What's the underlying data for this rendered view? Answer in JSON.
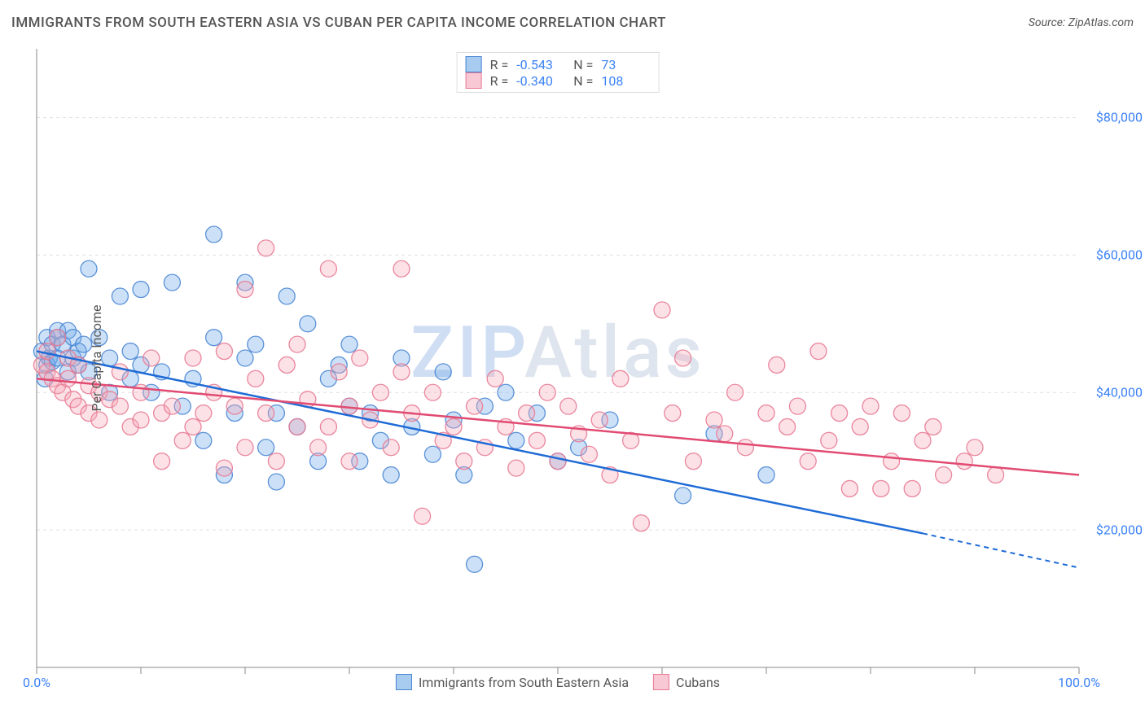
{
  "title": "IMMIGRANTS FROM SOUTH EASTERN ASIA VS CUBAN PER CAPITA INCOME CORRELATION CHART",
  "source": "Source: ZipAtlas.com",
  "watermark": {
    "part1": "ZIP",
    "part2": "Atlas"
  },
  "chart": {
    "type": "scatter",
    "ylabel": "Per Capita Income",
    "xlim": [
      0,
      100
    ],
    "ylim": [
      0,
      90000
    ],
    "y_ticks": [
      {
        "value": 20000,
        "label": "$20,000"
      },
      {
        "value": 40000,
        "label": "$40,000"
      },
      {
        "value": 60000,
        "label": "$60,000"
      },
      {
        "value": 80000,
        "label": "$80,000"
      }
    ],
    "y_gridlines": [
      20000,
      40000,
      60000,
      80000
    ],
    "x_tick_minor": [
      0,
      10,
      20,
      30,
      40,
      50,
      60,
      70,
      80,
      90,
      100
    ],
    "x_ticks": [
      {
        "value": 0,
        "label": "0.0%"
      },
      {
        "value": 100,
        "label": "100.0%"
      }
    ],
    "grid_color": "#e0e0e0",
    "grid_dash": "4 4",
    "axis_color": "#888",
    "background_color": "#ffffff",
    "tick_label_color": "#3b82f6",
    "axis_label_color": "#555555",
    "marker": {
      "radius": 10,
      "fill_opacity": 0.35,
      "stroke_width": 1.3,
      "stroke_opacity": 0.9
    },
    "series": [
      {
        "name": "Immigrants from South Eastern Asia",
        "color": "#6ea8e8",
        "stroke": "#4a86d4",
        "line_color": "#1e6bd6",
        "R": "-0.543",
        "N": "73",
        "regression": {
          "x1": 0,
          "y1": 46000,
          "x2": 85,
          "y2": 19500
        },
        "regression_extrapolate": {
          "x1": 85,
          "y1": 19500,
          "x2": 100,
          "y2": 14500
        },
        "points": [
          [
            0.5,
            46000
          ],
          [
            0.8,
            42000
          ],
          [
            1,
            48000
          ],
          [
            1,
            44000
          ],
          [
            1.2,
            45000
          ],
          [
            1.5,
            47000
          ],
          [
            1.5,
            44500
          ],
          [
            2,
            49000
          ],
          [
            2,
            45000
          ],
          [
            2,
            48000
          ],
          [
            2.5,
            47000
          ],
          [
            3,
            43000
          ],
          [
            3,
            49000
          ],
          [
            3.5,
            48000
          ],
          [
            3.5,
            45000
          ],
          [
            4,
            46000
          ],
          [
            4,
            44000
          ],
          [
            4.5,
            47000
          ],
          [
            5,
            58000
          ],
          [
            5,
            43000
          ],
          [
            6,
            48000
          ],
          [
            7,
            45000
          ],
          [
            7,
            40000
          ],
          [
            8,
            54000
          ],
          [
            9,
            42000
          ],
          [
            9,
            46000
          ],
          [
            10,
            55000
          ],
          [
            10,
            44000
          ],
          [
            11,
            40000
          ],
          [
            12,
            43000
          ],
          [
            13,
            56000
          ],
          [
            14,
            38000
          ],
          [
            15,
            42000
          ],
          [
            16,
            33000
          ],
          [
            17,
            63000
          ],
          [
            17,
            48000
          ],
          [
            18,
            28000
          ],
          [
            19,
            37000
          ],
          [
            20,
            56000
          ],
          [
            20,
            45000
          ],
          [
            21,
            47000
          ],
          [
            22,
            32000
          ],
          [
            23,
            37000
          ],
          [
            23,
            27000
          ],
          [
            24,
            54000
          ],
          [
            25,
            35000
          ],
          [
            26,
            50000
          ],
          [
            27,
            30000
          ],
          [
            28,
            42000
          ],
          [
            29,
            44000
          ],
          [
            30,
            38000
          ],
          [
            30,
            47000
          ],
          [
            31,
            30000
          ],
          [
            32,
            37000
          ],
          [
            33,
            33000
          ],
          [
            34,
            28000
          ],
          [
            35,
            45000
          ],
          [
            36,
            35000
          ],
          [
            38,
            31000
          ],
          [
            39,
            43000
          ],
          [
            40,
            36000
          ],
          [
            41,
            28000
          ],
          [
            42,
            15000
          ],
          [
            43,
            38000
          ],
          [
            45,
            40000
          ],
          [
            46,
            33000
          ],
          [
            48,
            37000
          ],
          [
            50,
            30000
          ],
          [
            52,
            32000
          ],
          [
            55,
            36000
          ],
          [
            62,
            25000
          ],
          [
            65,
            34000
          ],
          [
            70,
            28000
          ]
        ]
      },
      {
        "name": "Cubans",
        "color": "#f5a8b8",
        "stroke": "#e87a94",
        "line_color": "#e14b72",
        "R": "-0.340",
        "N": "108",
        "regression": {
          "x1": 0,
          "y1": 42000,
          "x2": 100,
          "y2": 28000
        },
        "points": [
          [
            0.5,
            44000
          ],
          [
            1,
            43000
          ],
          [
            1,
            46000
          ],
          [
            1.5,
            42000
          ],
          [
            2,
            48000
          ],
          [
            2,
            41000
          ],
          [
            2.5,
            40000
          ],
          [
            3,
            45000
          ],
          [
            3,
            42000
          ],
          [
            3.5,
            39000
          ],
          [
            4,
            38000
          ],
          [
            4,
            44000
          ],
          [
            5,
            41000
          ],
          [
            5,
            37000
          ],
          [
            6,
            40000
          ],
          [
            6,
            36000
          ],
          [
            7,
            39000
          ],
          [
            8,
            38000
          ],
          [
            8,
            43000
          ],
          [
            9,
            35000
          ],
          [
            10,
            40000
          ],
          [
            10,
            36000
          ],
          [
            11,
            45000
          ],
          [
            12,
            37000
          ],
          [
            12,
            30000
          ],
          [
            13,
            38000
          ],
          [
            14,
            33000
          ],
          [
            15,
            45000
          ],
          [
            15,
            35000
          ],
          [
            16,
            37000
          ],
          [
            17,
            40000
          ],
          [
            18,
            29000
          ],
          [
            18,
            46000
          ],
          [
            19,
            38000
          ],
          [
            20,
            55000
          ],
          [
            20,
            32000
          ],
          [
            21,
            42000
          ],
          [
            22,
            61000
          ],
          [
            22,
            37000
          ],
          [
            23,
            30000
          ],
          [
            24,
            44000
          ],
          [
            25,
            35000
          ],
          [
            25,
            47000
          ],
          [
            26,
            39000
          ],
          [
            27,
            32000
          ],
          [
            28,
            58000
          ],
          [
            28,
            35000
          ],
          [
            29,
            43000
          ],
          [
            30,
            38000
          ],
          [
            30,
            30000
          ],
          [
            31,
            45000
          ],
          [
            32,
            36000
          ],
          [
            33,
            40000
          ],
          [
            34,
            32000
          ],
          [
            35,
            58000
          ],
          [
            35,
            43000
          ],
          [
            36,
            37000
          ],
          [
            37,
            22000
          ],
          [
            38,
            40000
          ],
          [
            39,
            33000
          ],
          [
            40,
            35000
          ],
          [
            41,
            30000
          ],
          [
            42,
            38000
          ],
          [
            43,
            32000
          ],
          [
            44,
            42000
          ],
          [
            45,
            35000
          ],
          [
            46,
            29000
          ],
          [
            47,
            37000
          ],
          [
            48,
            33000
          ],
          [
            49,
            40000
          ],
          [
            50,
            30000
          ],
          [
            51,
            38000
          ],
          [
            52,
            34000
          ],
          [
            53,
            31000
          ],
          [
            54,
            36000
          ],
          [
            55,
            28000
          ],
          [
            56,
            42000
          ],
          [
            57,
            33000
          ],
          [
            58,
            21000
          ],
          [
            60,
            52000
          ],
          [
            61,
            37000
          ],
          [
            62,
            45000
          ],
          [
            63,
            30000
          ],
          [
            65,
            36000
          ],
          [
            66,
            34000
          ],
          [
            67,
            40000
          ],
          [
            68,
            32000
          ],
          [
            70,
            37000
          ],
          [
            71,
            44000
          ],
          [
            72,
            35000
          ],
          [
            73,
            38000
          ],
          [
            74,
            30000
          ],
          [
            75,
            46000
          ],
          [
            76,
            33000
          ],
          [
            77,
            37000
          ],
          [
            78,
            26000
          ],
          [
            79,
            35000
          ],
          [
            80,
            38000
          ],
          [
            81,
            26000
          ],
          [
            82,
            30000
          ],
          [
            83,
            37000
          ],
          [
            84,
            26000
          ],
          [
            85,
            33000
          ],
          [
            86,
            35000
          ],
          [
            87,
            28000
          ],
          [
            89,
            30000
          ],
          [
            90,
            32000
          ],
          [
            92,
            28000
          ]
        ]
      }
    ]
  },
  "legend_bottom": [
    {
      "label": "Immigrants from South Eastern Asia",
      "fill": "#a8ccf0",
      "stroke": "#4a86d4"
    },
    {
      "label": "Cubans",
      "fill": "#f8c8d4",
      "stroke": "#e87a94"
    }
  ]
}
